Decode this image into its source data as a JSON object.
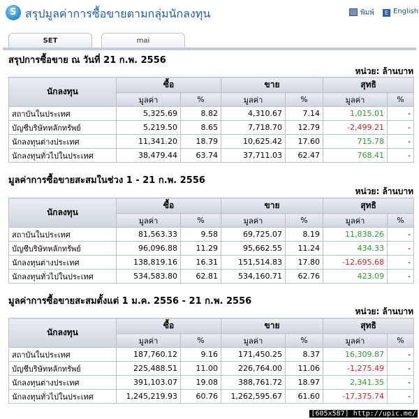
{
  "header": {
    "title": "สรุปมูลค่าการซื้อขายตามกลุ่มนักลงทุน",
    "print_label": "พิมพ์",
    "english_label": "English",
    "english_icon_letter": "E"
  },
  "tabs": [
    {
      "label": "SET",
      "active": true
    },
    {
      "label": "mai",
      "active": false
    }
  ],
  "columns": {
    "investor": "นักลงทุน",
    "buy": "ซื้อ",
    "sell": "ขาย",
    "net": "สุทธิ",
    "value": "มูลค่า",
    "pct": "%"
  },
  "sections": [
    {
      "title": "สรุปการซื้อขาย ณ วันที่ 21 ก.พ. 2556",
      "unit": "หน่วย: ล้านบาท",
      "rows": [
        {
          "name": "สถาบันในประเทศ",
          "buy": "5,325.69",
          "buy_pct": "8.82",
          "sell": "4,310.67",
          "sell_pct": "7.14",
          "net": "1,015.01",
          "net_pct": "-"
        },
        {
          "name": "บัญชีบริษัทหลักทรัพย์",
          "buy": "5,219.50",
          "buy_pct": "8.65",
          "sell": "7,718.70",
          "sell_pct": "12.79",
          "net": "-2,499.21",
          "net_pct": "-"
        },
        {
          "name": "นักลงทุนต่างประเทศ",
          "buy": "11,341.20",
          "buy_pct": "18.79",
          "sell": "10,625.42",
          "sell_pct": "17.60",
          "net": "715.78",
          "net_pct": "-"
        },
        {
          "name": "นักลงทุนทั่วไปในประเทศ",
          "buy": "38,479.44",
          "buy_pct": "63.74",
          "sell": "37,711.03",
          "sell_pct": "62.47",
          "net": "768.41",
          "net_pct": "-"
        }
      ]
    },
    {
      "title": "มูลค่าการซื้อขายสะสมในช่วง 1 - 21 ก.พ. 2556",
      "unit": "หน่วย: ล้านบาท",
      "rows": [
        {
          "name": "สถาบันในประเทศ",
          "buy": "81,563.33",
          "buy_pct": "9.58",
          "sell": "69,725.07",
          "sell_pct": "8.19",
          "net": "11,838.26",
          "net_pct": "-"
        },
        {
          "name": "บัญชีบริษัทหลักทรัพย์",
          "buy": "96,096.88",
          "buy_pct": "11.29",
          "sell": "95,662.55",
          "sell_pct": "11.24",
          "net": "434.33",
          "net_pct": "-"
        },
        {
          "name": "นักลงทุนต่างประเทศ",
          "buy": "138,819.16",
          "buy_pct": "16.31",
          "sell": "151,514.83",
          "sell_pct": "17.80",
          "net": "-12,695.68",
          "net_pct": "-"
        },
        {
          "name": "นักลงทุนทั่วไปในประเทศ",
          "buy": "534,583.80",
          "buy_pct": "62.81",
          "sell": "534,160.71",
          "sell_pct": "62.76",
          "net": "423.09",
          "net_pct": "-"
        }
      ]
    },
    {
      "title": "มูลค่าการซื้อขายสะสมตั้งแต่ 1 ม.ค. 2556 - 21 ก.พ. 2556",
      "unit": "หน่วย: ล้านบาท",
      "rows": [
        {
          "name": "สถาบันในประเทศ",
          "buy": "187,760.12",
          "buy_pct": "9.16",
          "sell": "171,450.25",
          "sell_pct": "8.37",
          "net": "16,309.87",
          "net_pct": "-"
        },
        {
          "name": "บัญชีบริษัทหลักทรัพย์",
          "buy": "225,488.51",
          "buy_pct": "11.00",
          "sell": "226,764.00",
          "sell_pct": "11.06",
          "net": "-1,275.49",
          "net_pct": "-"
        },
        {
          "name": "นักลงทุนต่างประเทศ",
          "buy": "391,103.07",
          "buy_pct": "19.08",
          "sell": "388,761.72",
          "sell_pct": "18.97",
          "net": "2,341.35",
          "net_pct": "-"
        },
        {
          "name": "นักลงทุนทั่วไปในประเทศ",
          "buy": "1,245,219.93",
          "buy_pct": "60.76",
          "sell": "1,262,595.67",
          "sell_pct": "61.60",
          "net": "-17,375.74",
          "net_pct": "-"
        }
      ]
    }
  ],
  "footer": "[605x587] http://upic.me/",
  "colors": {
    "positive": "#2f9a2f",
    "negative": "#d2222a",
    "title": "#1b5fa8"
  }
}
